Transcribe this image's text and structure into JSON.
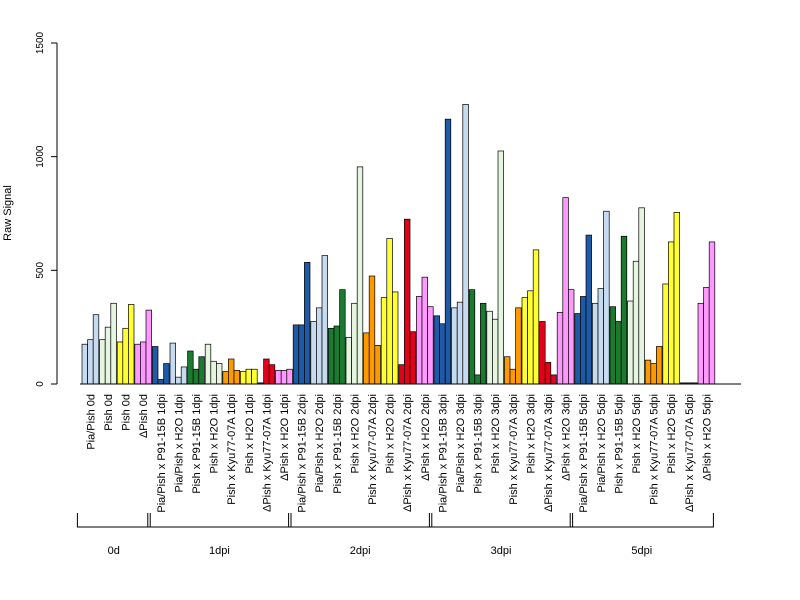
{
  "chart_data": {
    "type": "bar",
    "title": "",
    "xlabel": "",
    "ylabel": "Raw Signal",
    "ylim": [
      0,
      1500
    ],
    "yticks": [
      0,
      500,
      1000,
      1500
    ],
    "grid": false,
    "categories": [
      {
        "label": "Pia/Pish 0d",
        "color": "#c6dbef",
        "values": [
          175,
          195,
          305
        ]
      },
      {
        "label": "Pish 0d",
        "color": "#e5f5e0",
        "values": [
          195,
          250,
          355
        ]
      },
      {
        "label": "Pish 0d",
        "color": "#ffff33",
        "values": [
          185,
          245,
          350
        ]
      },
      {
        "label": "ΔPish 0d",
        "color": "#ff99ff",
        "values": [
          175,
          185,
          325
        ]
      },
      {
        "label": "Pia/Pish x P91-15B 1dpi",
        "color": "#1f5aa6",
        "values": [
          165,
          20,
          90
        ]
      },
      {
        "label": "Pia/Pish x H2O 1dpi",
        "color": "#c6dbef",
        "values": [
          180,
          30,
          75
        ]
      },
      {
        "label": "Pish x P91-15B 1dpi",
        "color": "#1b7a2f",
        "values": [
          145,
          65,
          120
        ]
      },
      {
        "label": "Pish x H2O 1dpi",
        "color": "#e5f5e0",
        "values": [
          175,
          100,
          90
        ]
      },
      {
        "label": "Pish x Kyu77-07A 1dpi",
        "color": "#ff9900",
        "values": [
          55,
          110,
          60
        ]
      },
      {
        "label": "Pish x H2O 1dpi",
        "color": "#ffff33",
        "values": [
          55,
          65,
          65
        ]
      },
      {
        "label": "ΔPish x Kyu77-07A 1dpi",
        "color": "#e3001b",
        "values": [
          5,
          110,
          85
        ]
      },
      {
        "label": "ΔPish x H2O 1dpi",
        "color": "#ff99ff",
        "values": [
          60,
          60,
          65
        ]
      },
      {
        "label": "Pia/Pish x P91-15B 2dpi",
        "color": "#1f5aa6",
        "values": [
          260,
          260,
          535
        ]
      },
      {
        "label": "Pia/Pish x H2O 2dpi",
        "color": "#c6dbef",
        "values": [
          275,
          335,
          565
        ]
      },
      {
        "label": "Pish x P91-15B 2dpi",
        "color": "#1b7a2f",
        "values": [
          245,
          255,
          415
        ]
      },
      {
        "label": "Pish x H2O 2dpi",
        "color": "#e5f5e0",
        "values": [
          205,
          355,
          955
        ]
      },
      {
        "label": "Pish x Kyu77-07A 2dpi",
        "color": "#ff9900",
        "values": [
          225,
          475,
          170
        ]
      },
      {
        "label": "Pish x H2O 2dpi",
        "color": "#ffff33",
        "values": [
          380,
          640,
          405
        ]
      },
      {
        "label": "ΔPish x Kyu77-07A 2dpi",
        "color": "#e3001b",
        "values": [
          85,
          725,
          230
        ]
      },
      {
        "label": "ΔPish x H2O 2dpi",
        "color": "#ff99ff",
        "values": [
          385,
          470,
          340
        ]
      },
      {
        "label": "Pia/Pish x P91-15B 3dpi",
        "color": "#1f5aa6",
        "values": [
          300,
          265,
          1165
        ]
      },
      {
        "label": "Pia/Pish x H2O 3dpi",
        "color": "#c6dbef",
        "values": [
          335,
          360,
          1230
        ]
      },
      {
        "label": "Pish x P91-15B 3dpi",
        "color": "#1b7a2f",
        "values": [
          415,
          40,
          355
        ]
      },
      {
        "label": "Pish x H2O 3dpi",
        "color": "#e5f5e0",
        "values": [
          320,
          285,
          1025
        ]
      },
      {
        "label": "Pish x Kyu77-07A 3dpi",
        "color": "#ff9900",
        "values": [
          120,
          65,
          335
        ]
      },
      {
        "label": "Pish x H2O 3dpi",
        "color": "#ffff33",
        "values": [
          380,
          410,
          590
        ]
      },
      {
        "label": "ΔPish x Kyu77-07A 3dpi",
        "color": "#e3001b",
        "values": [
          275,
          95,
          40
        ]
      },
      {
        "label": "ΔPish x H2O 3dpi",
        "color": "#ff99ff",
        "values": [
          315,
          820,
          415
        ]
      },
      {
        "label": "Pia/Pish x P91-15B 5dpi",
        "color": "#1f5aa6",
        "values": [
          310,
          385,
          655
        ]
      },
      {
        "label": "Pia/Pish x H2O 5dpi",
        "color": "#c6dbef",
        "values": [
          355,
          420,
          760
        ]
      },
      {
        "label": "Pish x P91-15B 5dpi",
        "color": "#1b7a2f",
        "values": [
          340,
          275,
          650
        ]
      },
      {
        "label": "Pish x H2O 5dpi",
        "color": "#e5f5e0",
        "values": [
          365,
          540,
          775
        ]
      },
      {
        "label": "Pish x Kyu77-07A 5dpi",
        "color": "#ff9900",
        "values": [
          105,
          90,
          165
        ]
      },
      {
        "label": "Pish x H2O 5dpi",
        "color": "#ffff33",
        "values": [
          440,
          625,
          755
        ]
      },
      {
        "label": "ΔPish x Kyu77-07A 5dpi",
        "color": "#e3001b",
        "values": [
          5,
          5,
          5
        ]
      },
      {
        "label": "ΔPish x H2O 5dpi",
        "color": "#ff99ff",
        "values": [
          355,
          425,
          625
        ]
      }
    ],
    "groups": [
      {
        "label": "0d",
        "first": 0,
        "last": 3
      },
      {
        "label": "1dpi",
        "first": 4,
        "last": 11
      },
      {
        "label": "2dpi",
        "first": 12,
        "last": 19
      },
      {
        "label": "3dpi",
        "first": 20,
        "last": 27
      },
      {
        "label": "5dpi",
        "first": 28,
        "last": 35
      }
    ]
  }
}
